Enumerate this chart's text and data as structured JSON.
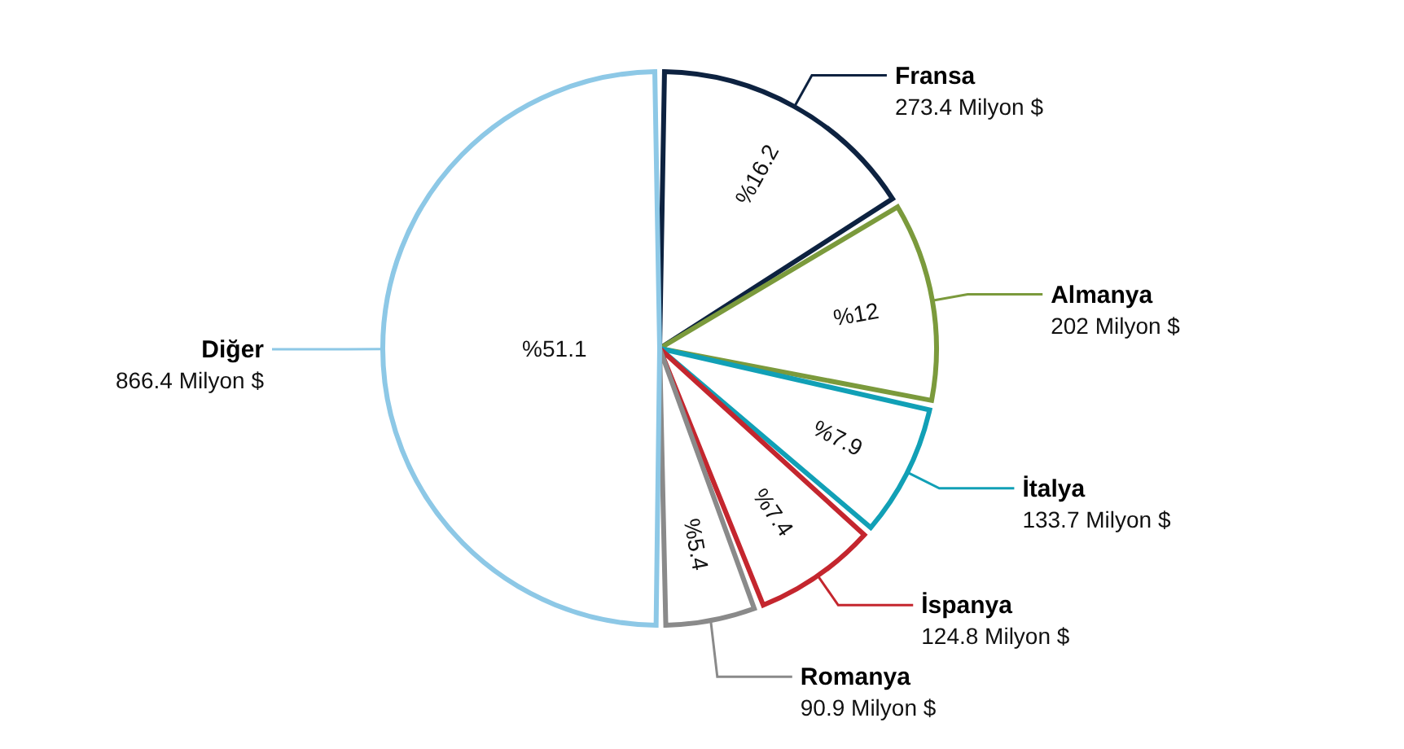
{
  "chart_data": {
    "type": "pie",
    "categories": [
      "Fransa",
      "Almanya",
      "İtalya",
      "İspanya",
      "Romanya",
      "Diğer"
    ],
    "values": [
      273.4,
      202,
      133.7,
      124.8,
      90.9,
      866.4
    ],
    "colors": [
      "#0d2240",
      "#7b9a3c",
      "#11a0b6",
      "#c4262e",
      "#8a8a8a",
      "#8dc8e6"
    ],
    "value_labels": [
      "273.4 Milyon $",
      "202 Milyon $",
      "133.7 Milyon $",
      "124.8 Milyon $",
      "90.9 Milyon $",
      "866.4 Milyon $"
    ],
    "annotations": [
      {
        "text": "%16.2",
        "x": "Fransa"
      },
      {
        "text": "%12",
        "x": "Almanya"
      },
      {
        "text": "%7.9",
        "x": "İtalya"
      },
      {
        "text": "%7.4",
        "x": "İspanya"
      },
      {
        "text": "%5.4",
        "x": "Romanya"
      },
      {
        "text": "%51.1",
        "x": "Diğer"
      }
    ]
  }
}
